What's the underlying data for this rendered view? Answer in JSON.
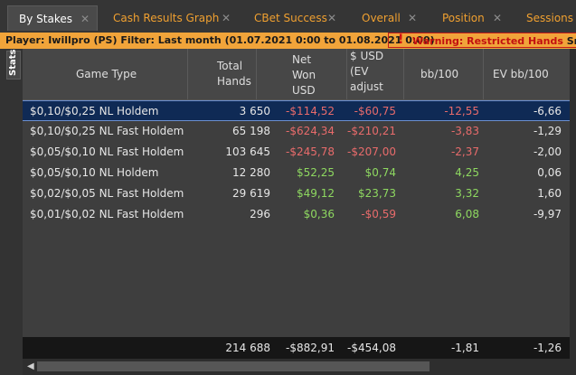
{
  "tabs": [
    {
      "label": "By Stakes",
      "active": true
    },
    {
      "label": "Cash Results Graph"
    },
    {
      "label": "CBet Success"
    },
    {
      "label": "Overall"
    },
    {
      "label": "Position"
    },
    {
      "label": "Sessions"
    }
  ],
  "filter": {
    "text": "Player: Iwillpro (PS)  Filter: Last month (01.07.2021 0:00 to 01.08.2021 0:00)",
    "warning": "Warning: Restricted Hands",
    "warning_tail": "Small Sta"
  },
  "side_tab": "Stats",
  "columns": [
    "Game Type",
    "Total Hands",
    "Net Won USD",
    "$ USD (EV adjust",
    "bb/100",
    "EV bb/100"
  ],
  "rows": [
    {
      "game": "$0,10/$0,25 NL Holdem",
      "hands": "3 650",
      "net": "-$114,52",
      "ev": "-$60,75",
      "bb": "-12,55",
      "evbb": "-6,66"
    },
    {
      "game": "$0,10/$0,25 NL Fast Holdem",
      "hands": "65 198",
      "net": "-$624,34",
      "ev": "-$210,21",
      "bb": "-3,83",
      "evbb": "-1,29"
    },
    {
      "game": "$0,05/$0,10 NL Fast Holdem",
      "hands": "103 645",
      "net": "-$245,78",
      "ev": "-$207,00",
      "bb": "-2,37",
      "evbb": "-2,00"
    },
    {
      "game": "$0,05/$0,10 NL Holdem",
      "hands": "12 280",
      "net": "$52,25",
      "ev": "$0,74",
      "bb": "4,25",
      "evbb": "0,06"
    },
    {
      "game": "$0,02/$0,05 NL Fast Holdem",
      "hands": "29 619",
      "net": "$49,12",
      "ev": "$23,73",
      "bb": "3,32",
      "evbb": "1,60"
    },
    {
      "game": "$0,01/$0,02 NL Fast Holdem",
      "hands": "296",
      "net": "$0,36",
      "ev": "-$0,59",
      "bb": "6,08",
      "evbb": "-9,97"
    }
  ],
  "totals": {
    "hands": "214 688",
    "net": "-$882,91",
    "ev": "-$454,08",
    "bb": "-1,81",
    "evbb": "-1,26"
  },
  "colors": {
    "accent": "#f0a030",
    "negative": "#e86b6b",
    "positive": "#8ed860",
    "selected_row": "#0f2a55"
  }
}
